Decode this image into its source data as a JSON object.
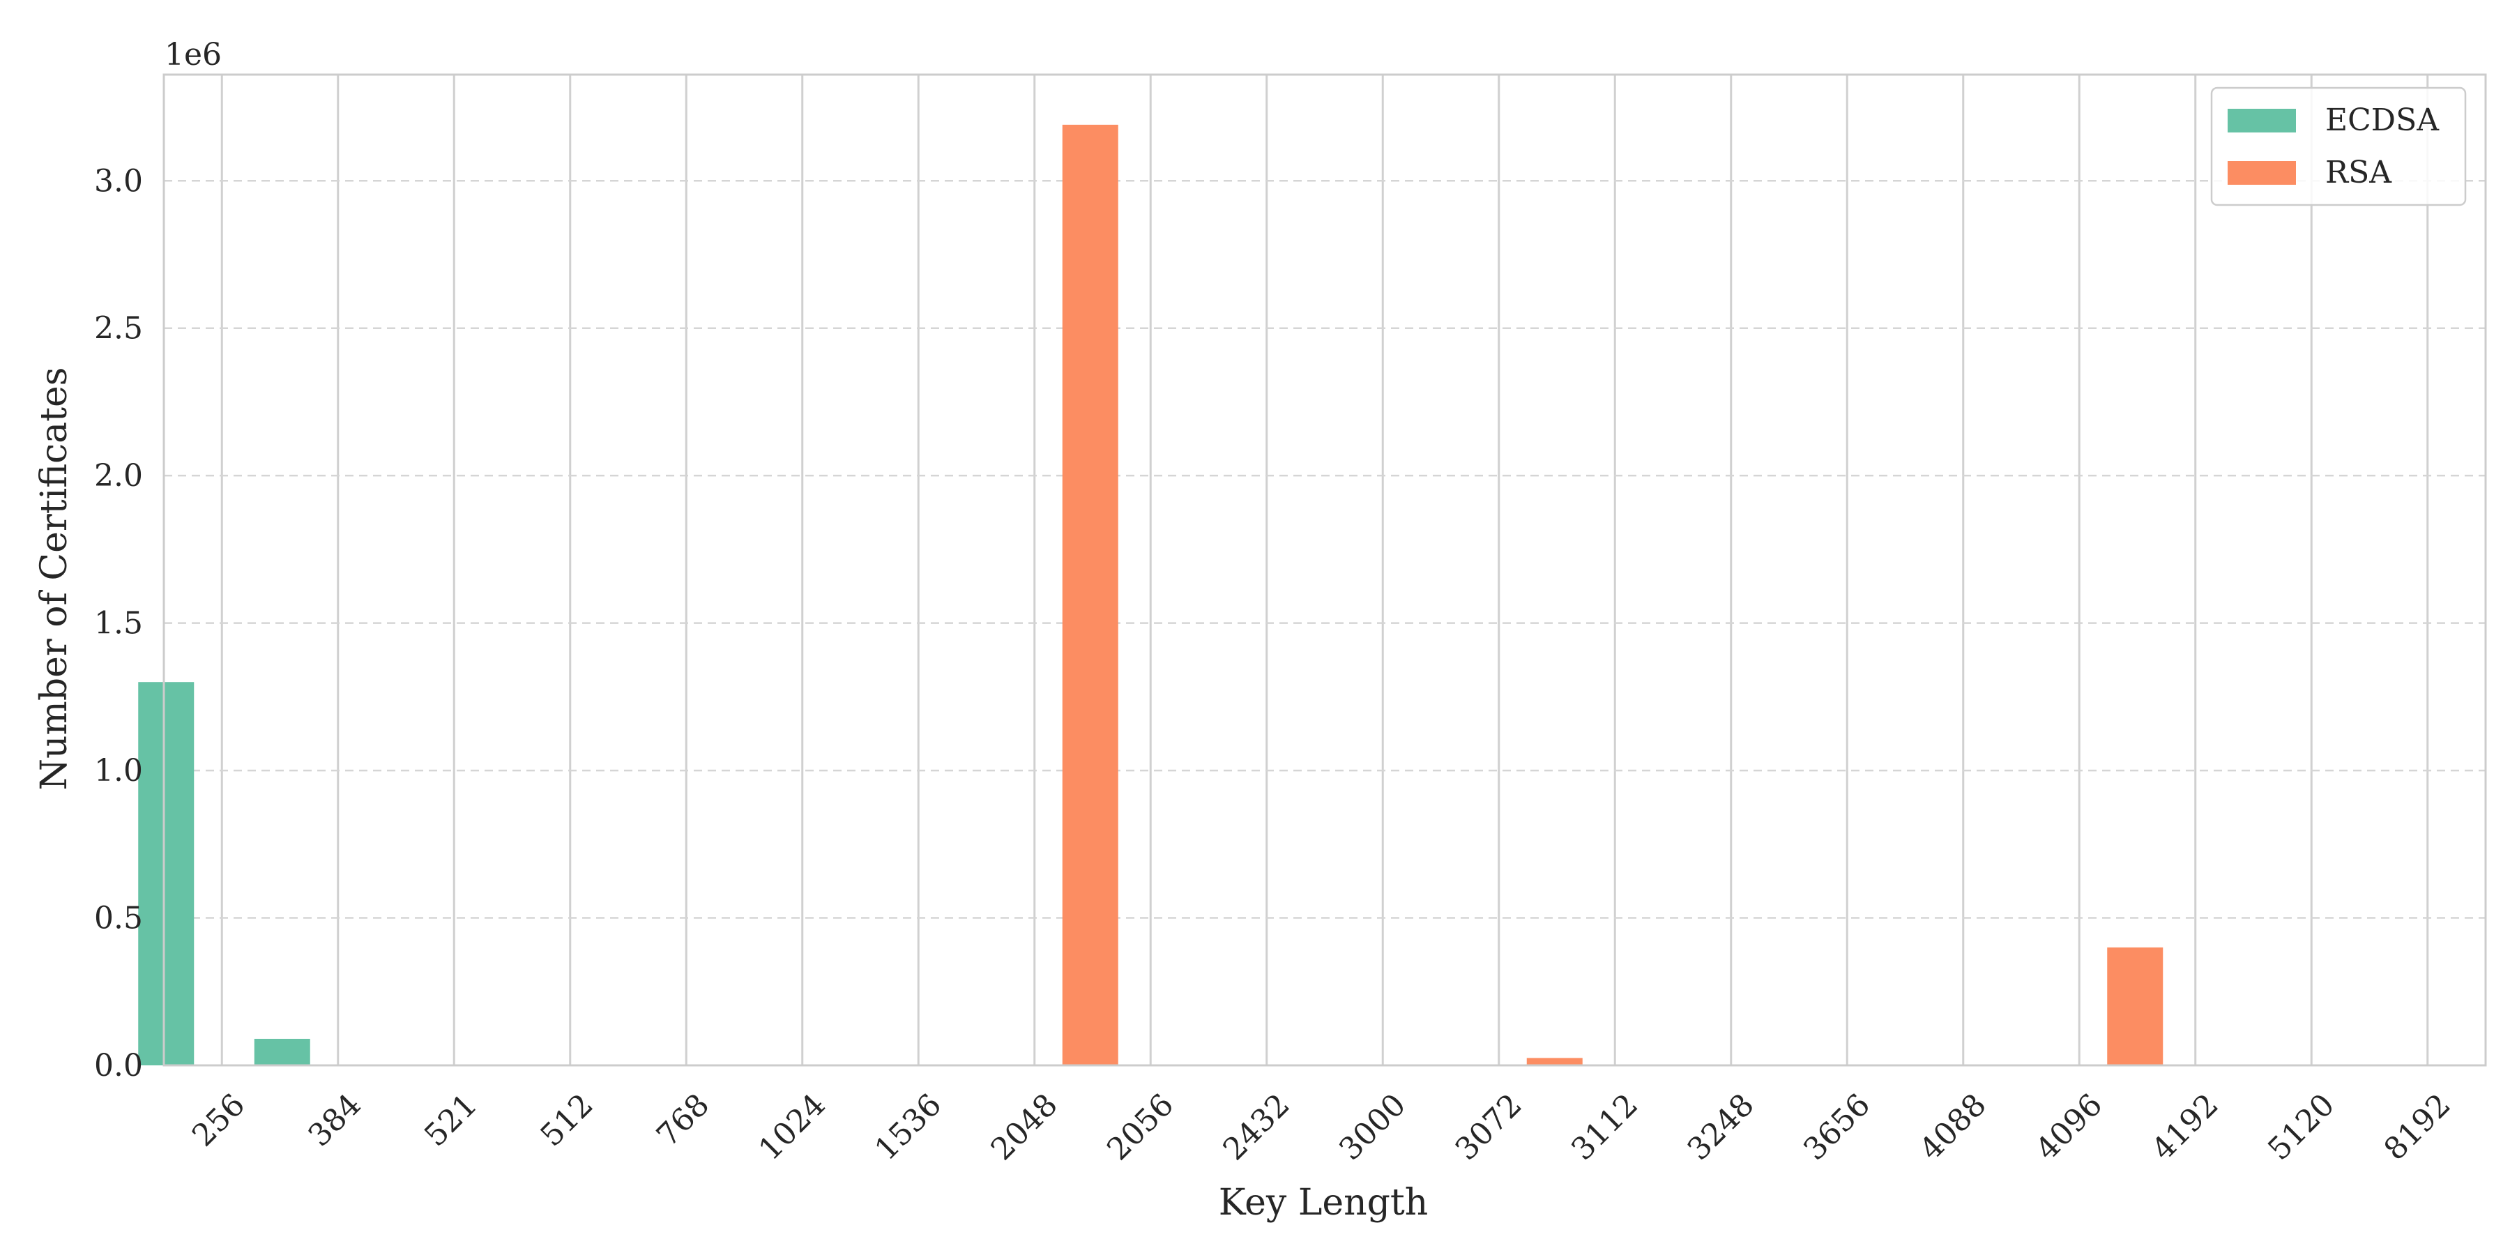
{
  "chart_data": {
    "type": "bar",
    "title": "",
    "xlabel": "Key Length",
    "ylabel": "Number of Certificates",
    "y_offset_label": "1e6",
    "categories": [
      "256",
      "384",
      "521",
      "512",
      "768",
      "1024",
      "1536",
      "2048",
      "2056",
      "2432",
      "3000",
      "3072",
      "3112",
      "3248",
      "3656",
      "4088",
      "4096",
      "4192",
      "5120",
      "8192"
    ],
    "series": [
      {
        "name": "ECDSA",
        "color": "#66c2a5",
        "values": [
          1300000,
          90000,
          0,
          0,
          0,
          0,
          0,
          0,
          0,
          0,
          0,
          0,
          0,
          0,
          0,
          0,
          0,
          0,
          0,
          0
        ]
      },
      {
        "name": "RSA",
        "color": "#fc8d62",
        "values": [
          0,
          0,
          0,
          0,
          0,
          0,
          0,
          3190000,
          0,
          0,
          0,
          25000,
          0,
          0,
          0,
          0,
          400000,
          0,
          0,
          0
        ]
      }
    ],
    "ylim": [
      0,
      3360000
    ],
    "yticks": [
      0,
      500000,
      1000000,
      1500000,
      2000000,
      2500000,
      3000000
    ],
    "ytick_labels": [
      "0.0",
      "0.5",
      "1.0",
      "1.5",
      "2.0",
      "2.5",
      "3.0"
    ],
    "grid": true,
    "legend": "top-right"
  }
}
